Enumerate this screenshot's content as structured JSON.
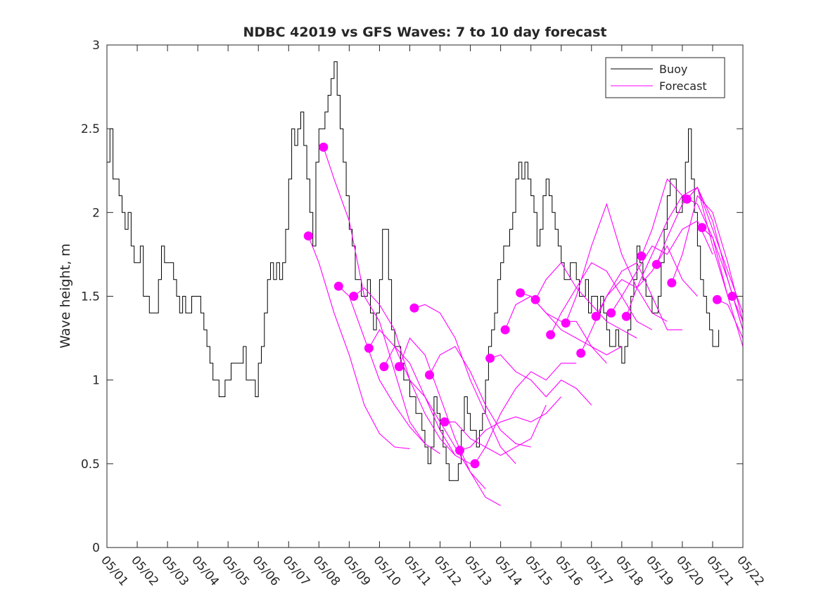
{
  "chart_data": {
    "type": "line",
    "title": "NDBC 42019 vs GFS Waves: 7 to 10 day forecast",
    "xlabel": "",
    "ylabel": "Wave height, m",
    "xlim": [
      0,
      21
    ],
    "ylim": [
      0,
      3
    ],
    "x_tick_labels": [
      "05/01",
      "05/02",
      "05/03",
      "05/04",
      "05/05",
      "05/06",
      "05/07",
      "05/08",
      "05/09",
      "05/10",
      "05/11",
      "05/12",
      "05/13",
      "05/14",
      "05/15",
      "05/16",
      "05/17",
      "05/18",
      "05/19",
      "05/20",
      "05/21",
      "05/22"
    ],
    "y_ticks": [
      0,
      0.5,
      1,
      1.5,
      2,
      2.5,
      3
    ],
    "y_tick_labels": [
      "0",
      "0.5",
      "1",
      "1.5",
      "2",
      "2.5",
      "3"
    ],
    "grid": false,
    "legend_position": "top-right",
    "legend": [
      {
        "label": "Buoy",
        "color": "#000000"
      },
      {
        "label": "Forecast",
        "color": "#ff00ff"
      }
    ],
    "buoy": {
      "name": "Buoy",
      "color": "#000000",
      "x": [
        0,
        0.1,
        0.2,
        0.3,
        0.4,
        0.5,
        0.6,
        0.7,
        0.8,
        0.9,
        1.0,
        1.1,
        1.2,
        1.3,
        1.4,
        1.5,
        1.6,
        1.7,
        1.8,
        1.9,
        2.0,
        2.1,
        2.2,
        2.3,
        2.4,
        2.5,
        2.6,
        2.7,
        2.8,
        2.9,
        3.0,
        3.1,
        3.2,
        3.3,
        3.4,
        3.5,
        3.6,
        3.7,
        3.8,
        3.9,
        4.0,
        4.1,
        4.2,
        4.3,
        4.4,
        4.5,
        4.6,
        4.7,
        4.8,
        4.9,
        5.0,
        5.1,
        5.2,
        5.3,
        5.4,
        5.5,
        5.6,
        5.7,
        5.8,
        5.9,
        6.0,
        6.1,
        6.2,
        6.3,
        6.4,
        6.5,
        6.6,
        6.7,
        6.8,
        6.9,
        7.0,
        7.1,
        7.2,
        7.3,
        7.4,
        7.5,
        7.6,
        7.7,
        7.8,
        7.9,
        8.0,
        8.1,
        8.2,
        8.3,
        8.4,
        8.5,
        8.6,
        8.7,
        8.8,
        8.9,
        9.0,
        9.1,
        9.2,
        9.3,
        9.4,
        9.5,
        9.6,
        9.7,
        9.8,
        9.9,
        10.0,
        10.1,
        10.2,
        10.3,
        10.4,
        10.5,
        10.6,
        10.7,
        10.8,
        10.9,
        11.0,
        11.1,
        11.2,
        11.3,
        11.4,
        11.5,
        11.6,
        11.7,
        11.8,
        11.9,
        12.0,
        12.1,
        12.2,
        12.3,
        12.4,
        12.5,
        12.6,
        12.7,
        12.8,
        12.9,
        13.0,
        13.1,
        13.2,
        13.3,
        13.4,
        13.5,
        13.6,
        13.7,
        13.8,
        13.9,
        14.0,
        14.1,
        14.2,
        14.3,
        14.4,
        14.5,
        14.6,
        14.7,
        14.8,
        14.9,
        15.0,
        15.1,
        15.2,
        15.3,
        15.4,
        15.5,
        15.6,
        15.7,
        15.8,
        15.9,
        16.0,
        16.1,
        16.2,
        16.3,
        16.4,
        16.5,
        16.6,
        16.7,
        16.8,
        16.9,
        17.0,
        17.1,
        17.2,
        17.3,
        17.4,
        17.5,
        17.6,
        17.7,
        17.8,
        17.9,
        18.0,
        18.1,
        18.2,
        18.3,
        18.4,
        18.5,
        18.6,
        18.7,
        18.8,
        18.9,
        19.0,
        19.1,
        19.2,
        19.3,
        19.4,
        19.5,
        19.6,
        19.7,
        19.8,
        19.9,
        20.0,
        20.1,
        20.2
      ],
      "y": [
        2.3,
        2.5,
        2.2,
        2.2,
        2.1,
        2.0,
        1.9,
        2.0,
        1.8,
        1.7,
        1.7,
        1.8,
        1.5,
        1.5,
        1.4,
        1.4,
        1.4,
        1.6,
        1.8,
        1.7,
        1.7,
        1.7,
        1.6,
        1.5,
        1.4,
        1.5,
        1.4,
        1.4,
        1.5,
        1.5,
        1.5,
        1.4,
        1.3,
        1.2,
        1.1,
        1.0,
        1.0,
        0.9,
        0.9,
        1.0,
        1.0,
        1.1,
        1.1,
        1.1,
        1.1,
        1.2,
        1.0,
        1.0,
        1.0,
        0.9,
        1.1,
        1.2,
        1.4,
        1.6,
        1.7,
        1.6,
        1.7,
        1.6,
        1.7,
        1.9,
        2.2,
        2.5,
        2.4,
        2.5,
        2.6,
        2.4,
        2.2,
        2.0,
        1.8,
        2.3,
        2.5,
        2.5,
        2.6,
        2.7,
        2.8,
        2.9,
        2.7,
        2.5,
        2.3,
        2.1,
        1.9,
        1.8,
        1.6,
        1.6,
        1.5,
        1.5,
        1.6,
        1.4,
        1.3,
        1.4,
        1.6,
        1.9,
        1.9,
        1.6,
        1.3,
        1.2,
        1.2,
        1.1,
        1.0,
        1.0,
        0.9,
        0.9,
        0.8,
        0.8,
        0.7,
        0.6,
        0.5,
        0.6,
        0.9,
        0.8,
        0.7,
        0.6,
        0.5,
        0.4,
        0.4,
        0.4,
        0.5,
        0.7,
        0.9,
        0.8,
        0.7,
        0.7,
        0.6,
        0.7,
        0.8,
        1.0,
        1.2,
        1.3,
        1.4,
        1.6,
        1.7,
        1.8,
        1.8,
        1.9,
        2.0,
        2.2,
        2.3,
        2.2,
        2.3,
        2.2,
        2.1,
        2.0,
        1.8,
        1.9,
        2.1,
        2.2,
        2.1,
        2.0,
        1.9,
        1.8,
        1.7,
        1.6,
        1.6,
        1.7,
        1.7,
        1.6,
        1.5,
        1.5,
        1.6,
        1.4,
        1.5,
        1.5,
        1.4,
        1.5,
        1.4,
        1.3,
        1.2,
        1.2,
        1.3,
        1.2,
        1.1,
        1.2,
        1.3,
        1.5,
        1.6,
        1.8,
        1.7,
        1.6,
        1.5,
        1.5,
        1.4,
        1.4,
        1.5,
        1.7,
        1.9,
        2.1,
        2.2,
        2.2,
        2.0,
        2.0,
        2.1,
        2.3,
        2.5,
        2.2,
        2.0,
        1.8,
        1.6,
        1.5,
        1.4,
        1.3,
        1.2,
        1.2,
        1.3
      ]
    },
    "forecast_runs": [
      {
        "x": [
          6.65,
          7.0,
          7.5,
          8.0,
          8.5,
          9.0,
          9.5,
          10.0
        ],
        "y": [
          1.86,
          1.7,
          1.4,
          1.15,
          0.85,
          0.68,
          0.6,
          0.59
        ]
      },
      {
        "x": [
          7.15,
          7.5,
          8.0,
          8.5,
          9.0,
          9.5,
          10.0,
          10.5
        ],
        "y": [
          2.39,
          2.2,
          1.95,
          1.5,
          1.35,
          1.05,
          0.75,
          0.62
        ]
      },
      {
        "x": [
          7.65,
          8.0,
          8.5,
          9.0,
          9.5,
          10.0,
          10.5,
          11.0
        ],
        "y": [
          1.56,
          1.5,
          1.25,
          1.0,
          0.85,
          0.72,
          0.62,
          0.56
        ]
      },
      {
        "x": [
          8.15,
          8.5,
          9.0,
          9.5,
          10.0,
          10.5,
          11.0,
          11.5
        ],
        "y": [
          1.5,
          1.55,
          1.45,
          1.3,
          1.0,
          0.8,
          0.65,
          0.55
        ]
      },
      {
        "x": [
          8.65,
          9.0,
          9.5,
          10.0,
          10.5,
          11.0,
          11.5,
          12.0
        ],
        "y": [
          1.19,
          1.3,
          1.2,
          1.1,
          0.9,
          0.7,
          0.55,
          0.5
        ]
      },
      {
        "x": [
          9.15,
          9.5,
          10.0,
          10.5,
          11.0,
          11.5,
          12.0,
          12.5
        ],
        "y": [
          1.08,
          1.2,
          1.0,
          0.9,
          0.75,
          0.6,
          0.45,
          0.35
        ]
      },
      {
        "x": [
          9.65,
          10.0,
          10.5,
          11.0,
          11.5,
          12.0,
          12.5,
          13.0
        ],
        "y": [
          1.08,
          1.25,
          1.15,
          0.9,
          0.65,
          0.45,
          0.3,
          0.25
        ]
      },
      {
        "x": [
          10.15,
          10.5,
          11.0,
          11.5,
          12.0,
          12.5,
          13.0,
          13.5
        ],
        "y": [
          1.43,
          1.45,
          1.4,
          1.25,
          1.0,
          0.8,
          0.6,
          0.5
        ]
      },
      {
        "x": [
          10.65,
          11.0,
          11.5,
          12.0,
          12.5,
          13.0,
          13.5,
          14.0
        ],
        "y": [
          1.03,
          1.15,
          1.2,
          1.05,
          0.85,
          0.7,
          0.62,
          0.6
        ]
      },
      {
        "x": [
          11.15,
          11.5,
          12.0,
          12.5,
          13.0,
          13.5,
          14.0,
          14.5
        ],
        "y": [
          0.75,
          0.75,
          0.65,
          0.6,
          0.55,
          0.6,
          0.65,
          0.85
        ]
      },
      {
        "x": [
          11.65,
          12.0,
          12.5,
          13.0,
          13.5,
          14.0,
          14.5,
          15.0
        ],
        "y": [
          0.58,
          0.6,
          0.7,
          0.75,
          0.78,
          0.75,
          0.8,
          0.9
        ]
      },
      {
        "x": [
          12.15,
          12.5,
          13.0,
          13.5,
          14.0,
          14.5,
          15.0,
          15.5
        ],
        "y": [
          0.5,
          0.6,
          0.8,
          0.95,
          1.05,
          1.0,
          1.1,
          1.1
        ]
      },
      {
        "x": [
          12.65,
          13.0,
          13.5,
          14.0,
          14.5,
          15.0,
          15.5,
          16.0
        ],
        "y": [
          1.13,
          1.15,
          1.05,
          1.0,
          0.9,
          1.0,
          0.95,
          0.85
        ]
      },
      {
        "x": [
          13.15,
          13.5,
          14.0,
          14.5,
          15.0,
          15.5,
          16.0,
          16.5
        ],
        "y": [
          1.3,
          1.45,
          1.5,
          1.4,
          1.35,
          1.35,
          1.2,
          1.1
        ]
      },
      {
        "x": [
          13.65,
          14.0,
          14.5,
          15.0,
          15.5,
          16.0,
          16.5,
          17.0
        ],
        "y": [
          1.52,
          1.5,
          1.4,
          1.3,
          1.25,
          1.2,
          1.15,
          1.2
        ]
      },
      {
        "x": [
          14.15,
          14.5,
          15.0,
          15.5,
          16.0,
          16.5,
          17.0,
          17.5
        ],
        "y": [
          1.48,
          1.6,
          1.7,
          1.55,
          1.45,
          1.35,
          1.3,
          1.25
        ]
      },
      {
        "x": [
          14.65,
          15.0,
          15.5,
          16.0,
          16.5,
          17.0,
          17.5,
          18.0
        ],
        "y": [
          1.27,
          1.4,
          1.55,
          1.7,
          1.65,
          1.5,
          1.35,
          1.3
        ]
      },
      {
        "x": [
          15.15,
          15.5,
          16.0,
          16.5,
          17.0,
          17.5,
          18.0,
          18.5
        ],
        "y": [
          1.34,
          1.5,
          1.8,
          2.05,
          1.75,
          1.55,
          1.4,
          1.35
        ]
      },
      {
        "x": [
          15.65,
          16.0,
          16.5,
          17.0,
          17.5,
          18.0,
          18.5,
          19.0
        ],
        "y": [
          1.16,
          1.3,
          1.5,
          1.65,
          1.7,
          1.5,
          1.3,
          1.3
        ]
      },
      {
        "x": [
          16.15,
          16.5,
          17.0,
          17.5,
          18.0,
          18.5,
          19.0,
          19.5
        ],
        "y": [
          1.38,
          1.5,
          1.6,
          1.55,
          1.65,
          1.8,
          1.6,
          1.5
        ]
      },
      {
        "x": [
          16.65,
          17.0,
          17.5,
          18.0,
          18.5,
          19.0,
          19.5,
          20.0
        ],
        "y": [
          1.4,
          1.5,
          1.65,
          1.8,
          1.75,
          1.9,
          1.95,
          1.75
        ]
      },
      {
        "x": [
          17.15,
          17.5,
          18.0,
          18.5,
          19.0,
          19.5,
          20.0,
          20.5
        ],
        "y": [
          1.38,
          1.55,
          1.75,
          1.95,
          2.1,
          2.15,
          1.8,
          1.5
        ]
      },
      {
        "x": [
          17.65,
          18.0,
          18.5,
          19.0,
          19.5,
          20.0,
          20.5,
          21.0
        ],
        "y": [
          1.74,
          1.9,
          2.2,
          2.1,
          2.05,
          1.85,
          1.5,
          1.2
        ]
      },
      {
        "x": [
          18.15,
          18.5,
          19.0,
          19.5,
          20.0,
          20.5,
          21.0
        ],
        "y": [
          1.69,
          1.85,
          2.05,
          2.15,
          1.95,
          1.6,
          1.3
        ]
      },
      {
        "x": [
          18.65,
          19.0,
          19.5,
          20.0,
          20.5,
          21.0
        ],
        "y": [
          1.58,
          1.75,
          2.1,
          2.0,
          1.7,
          1.35
        ]
      },
      {
        "x": [
          19.15,
          19.5,
          20.0,
          20.5,
          21.0
        ],
        "y": [
          2.08,
          2.15,
          1.9,
          1.65,
          1.4
        ]
      },
      {
        "x": [
          19.65,
          20.0,
          20.5,
          21.0
        ],
        "y": [
          1.91,
          1.85,
          1.6,
          1.3
        ]
      },
      {
        "x": [
          20.15,
          20.5,
          21.0
        ],
        "y": [
          1.48,
          1.45,
          1.25
        ]
      },
      {
        "x": [
          20.65,
          21.0
        ],
        "y": [
          1.5,
          1.35
        ]
      }
    ],
    "forecast_markers": {
      "x": [
        6.65,
        7.15,
        7.65,
        8.15,
        8.65,
        9.15,
        9.65,
        10.15,
        10.65,
        11.15,
        11.65,
        12.15,
        12.65,
        13.15,
        13.65,
        14.15,
        14.65,
        15.15,
        15.65,
        16.15,
        16.65,
        17.15,
        17.65,
        18.15,
        18.65,
        19.15,
        19.65,
        20.15,
        20.65
      ],
      "y": [
        1.86,
        2.39,
        1.56,
        1.5,
        1.19,
        1.08,
        1.08,
        1.43,
        1.03,
        0.75,
        0.58,
        0.5,
        1.13,
        1.3,
        1.52,
        1.48,
        1.27,
        1.34,
        1.16,
        1.38,
        1.4,
        1.38,
        1.74,
        1.69,
        1.58,
        2.08,
        1.91,
        1.48,
        1.5
      ],
      "color": "#ff00ff"
    }
  }
}
